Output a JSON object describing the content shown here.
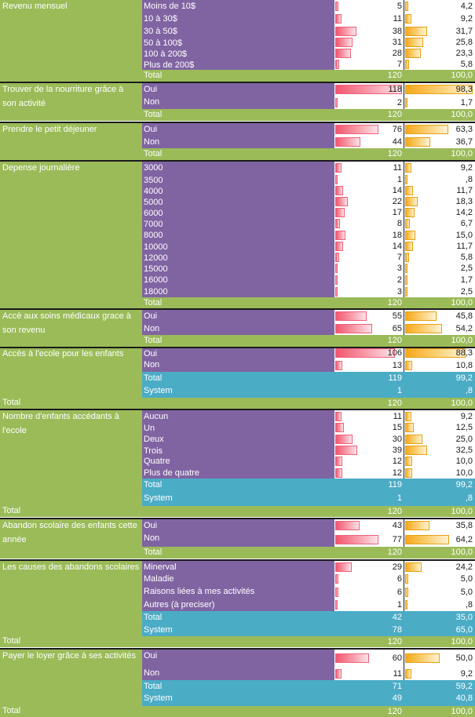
{
  "sections": [
    {
      "question": "Revenu mensuel",
      "rows": [
        {
          "label": "Moins de 10$",
          "count": "5",
          "pct": "4,2"
        },
        {
          "label": "10 à 30$",
          "count": "11",
          "pct": "9,2"
        },
        {
          "label": "30 à 50$",
          "count": "38",
          "pct": "31,7"
        },
        {
          "label": "50 à 100$",
          "count": "31",
          "pct": "25,8"
        },
        {
          "label": "100 à 200$",
          "count": "28",
          "pct": "23,3"
        },
        {
          "label": "Plus de 200$",
          "count": "7",
          "pct": "5,8"
        }
      ],
      "subtotals": [],
      "total": {
        "label": "Total",
        "count": "120",
        "pct": "100,0"
      }
    },
    {
      "question": "Trouver de la nourriture grâce à son activité",
      "rows": [
        {
          "label": "Oui",
          "count": "118",
          "pct": "98,3"
        },
        {
          "label": "Non",
          "count": "2",
          "pct": "1,7"
        }
      ],
      "subtotals": [],
      "total": {
        "label": "Total",
        "count": "120",
        "pct": "100,0"
      }
    },
    {
      "question": "Prendre le petit déjeuner",
      "rows": [
        {
          "label": "Oui",
          "count": "76",
          "pct": "63,3"
        },
        {
          "label": "Non",
          "count": "44",
          "pct": "36,7"
        }
      ],
      "subtotals": [],
      "total": {
        "label": "Total",
        "count": "120",
        "pct": "100,0"
      }
    },
    {
      "question": "Depense journalière",
      "rows": [
        {
          "label": "3000",
          "count": "11",
          "pct": "9,2"
        },
        {
          "label": "3500",
          "count": "1",
          "pct": ",8"
        },
        {
          "label": "4000",
          "count": "14",
          "pct": "11,7"
        },
        {
          "label": "5000",
          "count": "22",
          "pct": "18,3"
        },
        {
          "label": "6000",
          "count": "17",
          "pct": "14,2"
        },
        {
          "label": "7000",
          "count": "8",
          "pct": "6,7"
        },
        {
          "label": "8000",
          "count": "18",
          "pct": "15,0"
        },
        {
          "label": "10000",
          "count": "14",
          "pct": "11,7"
        },
        {
          "label": "12000",
          "count": "7",
          "pct": "5,8"
        },
        {
          "label": "15000",
          "count": "3",
          "pct": "2,5"
        },
        {
          "label": "16000",
          "count": "2",
          "pct": "1,7"
        },
        {
          "label": "18000",
          "count": "3",
          "pct": "2,5"
        }
      ],
      "subtotals": [],
      "total": {
        "label": "Total",
        "count": "120",
        "pct": "100,0"
      }
    },
    {
      "question": "Accè aux soins médicaux grace à son revenu",
      "rows": [
        {
          "label": "Oui",
          "count": "55",
          "pct": "45,8"
        },
        {
          "label": "Non",
          "count": "65",
          "pct": "54,2"
        }
      ],
      "subtotals": [],
      "total": {
        "label": "Total",
        "count": "120",
        "pct": "100,0"
      }
    },
    {
      "question": "Accès à l'ecole pour les enfants",
      "rows": [
        {
          "label": "Oui",
          "count": "106",
          "pct": "88,3"
        },
        {
          "label": "Non",
          "count": "13",
          "pct": "10,8"
        }
      ],
      "subtotals": [
        {
          "label": "Total",
          "count": "119",
          "pct": "99,2"
        },
        {
          "label": "System",
          "count": "1",
          "pct": ",8"
        }
      ],
      "total": {
        "label": "Total",
        "count": "120",
        "pct": "100,0"
      }
    },
    {
      "question": "Nombre d'enfants accédants à l'ecole",
      "rows": [
        {
          "label": "Aucun",
          "count": "11",
          "pct": "9,2"
        },
        {
          "label": "Un",
          "count": "15",
          "pct": "12,5"
        },
        {
          "label": "Deux",
          "count": "30",
          "pct": "25,0"
        },
        {
          "label": "Trois",
          "count": "39",
          "pct": "32,5"
        },
        {
          "label": "Quatre",
          "count": "12",
          "pct": "10,0"
        },
        {
          "label": "Plus de quatre",
          "count": "12",
          "pct": "10,0"
        }
      ],
      "subtotals": [
        {
          "label": "Total",
          "count": "119",
          "pct": "99,2"
        },
        {
          "label": "System",
          "count": "1",
          "pct": ",8"
        }
      ],
      "total": {
        "label": "Total",
        "count": "120",
        "pct": "100,0"
      }
    },
    {
      "question": "Abandon scolaire des enfants cette année",
      "rows": [
        {
          "label": "Oui",
          "count": "43",
          "pct": "35,8"
        },
        {
          "label": "Non",
          "count": "77",
          "pct": "64,2"
        }
      ],
      "subtotals": [],
      "total": {
        "label": "Total",
        "count": "120",
        "pct": "100,0"
      }
    },
    {
      "question": "Les causes des abandons scolaires",
      "rows": [
        {
          "label": "Minerval",
          "count": "29",
          "pct": "24,2"
        },
        {
          "label": "Maladie",
          "count": "6",
          "pct": "5,0"
        },
        {
          "label": "Raisons liées à mes activités",
          "count": "6",
          "pct": "5,0"
        },
        {
          "label": "Autres (à preciser)",
          "count": "1",
          "pct": ",8"
        }
      ],
      "subtotals": [
        {
          "label": "Total",
          "count": "42",
          "pct": "35,0"
        },
        {
          "label": "System",
          "count": "78",
          "pct": "65,0"
        }
      ],
      "total": {
        "label": "Total",
        "count": "120",
        "pct": "100,0"
      }
    },
    {
      "question": "Payer le loyer grâce à ses activités",
      "rows": [
        {
          "label": "Oui",
          "count": "60",
          "pct": "50,0"
        },
        {
          "label": "Non",
          "count": "11",
          "pct": "9,2"
        }
      ],
      "subtotals": [
        {
          "label": "Total",
          "count": "71",
          "pct": "59,2"
        },
        {
          "label": "System",
          "count": "49",
          "pct": "40,8"
        }
      ],
      "total": {
        "label": "Total",
        "count": "120",
        "pct": "100,0"
      }
    }
  ],
  "colors": {
    "question_bg": "#9bbb59",
    "category_bg": "#8064a2",
    "subtotal_bg": "#4bacc6",
    "count_bar": "#f2566f",
    "pct_bar": "#f5a81a"
  }
}
